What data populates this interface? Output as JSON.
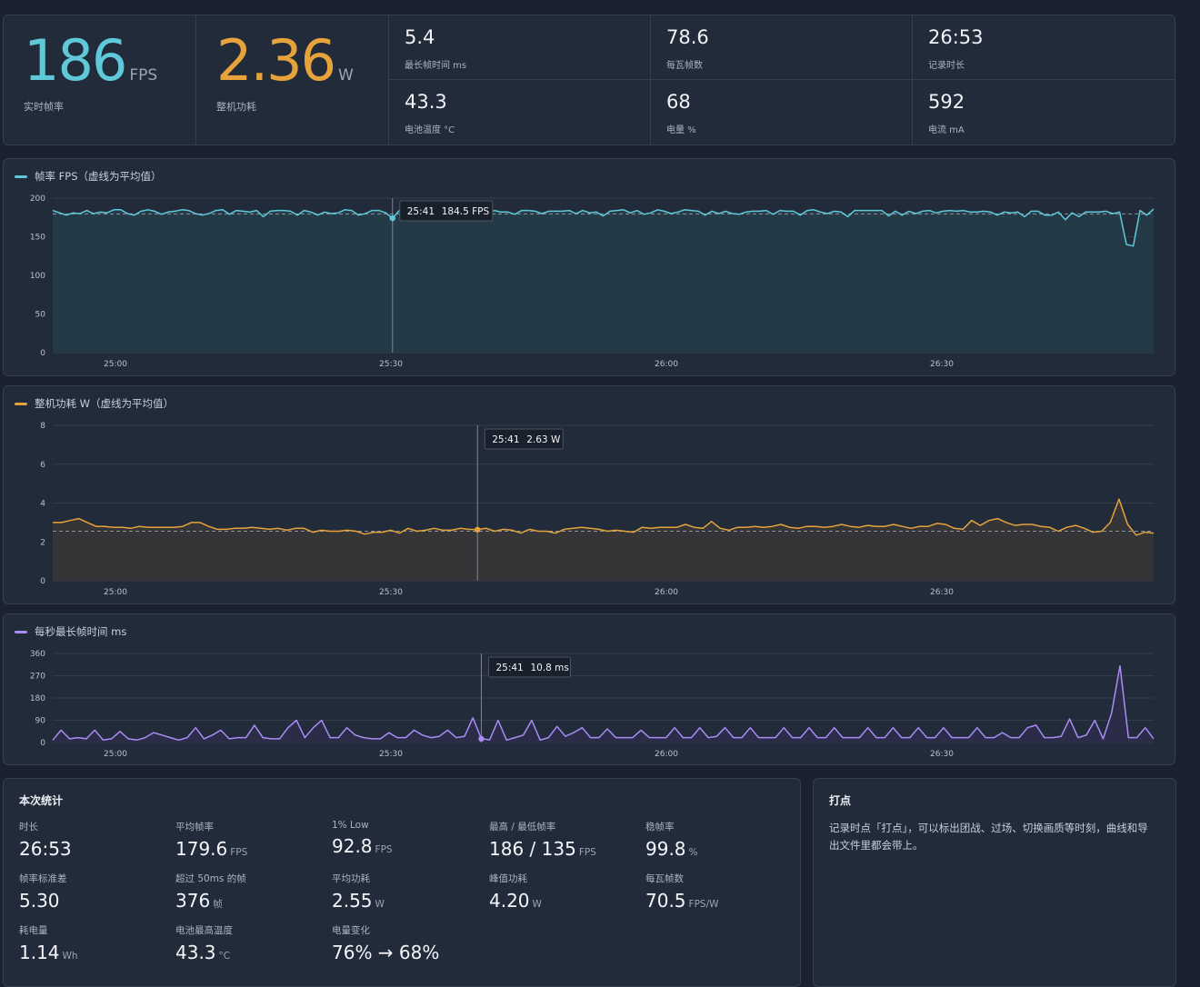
{
  "header": {
    "fps": {
      "value": "186",
      "unit": "FPS",
      "label": "实时帧率"
    },
    "power": {
      "value": "2.36",
      "unit": "W",
      "label": "整机功耗"
    },
    "cells": [
      {
        "value": "5.4",
        "label": "最长帧时间 ms"
      },
      {
        "value": "78.6",
        "label": "每瓦帧数"
      },
      {
        "value": "26:53",
        "label": "记录时长"
      },
      {
        "value": "43.3",
        "label": "电池温度 °C"
      },
      {
        "value": "68",
        "label": "电量 %"
      },
      {
        "value": "592",
        "label": "电流 mA"
      }
    ]
  },
  "colors": {
    "fps": "#5fc9da",
    "power": "#e6a33b",
    "frametime": "#a98cf5"
  },
  "charts": {
    "fps": {
      "title": "帧率 FPS（虚线为平均值）",
      "tooltip_time": "25:41",
      "tooltip_value": "184.5 FPS"
    },
    "power": {
      "title": "整机功耗 W（虚线为平均值）",
      "tooltip_time": "25:41",
      "tooltip_value": "2.63 W"
    },
    "frametime": {
      "title": "每秒最长帧时间 ms",
      "tooltip_time": "25:41",
      "tooltip_value": "10.8 ms"
    }
  },
  "chart_data": [
    {
      "type": "line",
      "title": "帧率 FPS（虚线为平均值）",
      "x_ticks": [
        "25:00",
        "25:30",
        "26:00",
        "26:30"
      ],
      "x_range_seconds": [
        1493,
        1613
      ],
      "ylim": [
        0,
        200
      ],
      "y_ticks": [
        "0",
        "50",
        "100",
        "150",
        "200"
      ],
      "average": 179.6,
      "grid": true,
      "series": [
        {
          "values": [
            184,
            181,
            178,
            181,
            180,
            184,
            180,
            182,
            181,
            185,
            185,
            180,
            178,
            183,
            185,
            183,
            179,
            182,
            183,
            185,
            184,
            180,
            178,
            180,
            184,
            185,
            179,
            184,
            183,
            182,
            184,
            176,
            183,
            184,
            184,
            183,
            178,
            184,
            182,
            178,
            182,
            180,
            181,
            185,
            184,
            178,
            180,
            184,
            184,
            181,
            174,
            184,
            182,
            180,
            183,
            184,
            177,
            184,
            183,
            183,
            181,
            176,
            182,
            185,
            180,
            184,
            182,
            182,
            179,
            184,
            184,
            183,
            180,
            183,
            183,
            183,
            184,
            180,
            184,
            181,
            182,
            177,
            183,
            184,
            185,
            181,
            184,
            179,
            181,
            185,
            183,
            180,
            182,
            185,
            184,
            183,
            178,
            183,
            180,
            183,
            180,
            179,
            182,
            183,
            183,
            184,
            179,
            184,
            183,
            183,
            178,
            184,
            185,
            182,
            180,
            183,
            182,
            176,
            184,
            184,
            184,
            184,
            184,
            177,
            183,
            178,
            183,
            180,
            183,
            184,
            181,
            183,
            184,
            183,
            184,
            182,
            182,
            183,
            182,
            178,
            182,
            181,
            182,
            176,
            183,
            183,
            178,
            178,
            182,
            172,
            181,
            176,
            182,
            182,
            182,
            183,
            180,
            182,
            140,
            138,
            184,
            178,
            186
          ]
        }
      ]
    },
    {
      "type": "line",
      "title": "整机功耗 W（虚线为平均值）",
      "x_ticks": [
        "25:00",
        "25:30",
        "26:00",
        "26:30"
      ],
      "ylim": [
        0,
        8
      ],
      "y_ticks": [
        "0",
        "2",
        "4",
        "6",
        "8"
      ],
      "average": 2.55,
      "grid": true,
      "series": [
        {
          "values": [
            3.0,
            3.0,
            3.1,
            3.2,
            3.0,
            2.8,
            2.8,
            2.75,
            2.75,
            2.7,
            2.8,
            2.75,
            2.75,
            2.75,
            2.75,
            2.8,
            3.0,
            3.0,
            2.8,
            2.65,
            2.65,
            2.7,
            2.7,
            2.75,
            2.7,
            2.65,
            2.7,
            2.6,
            2.7,
            2.7,
            2.5,
            2.6,
            2.55,
            2.55,
            2.6,
            2.55,
            2.4,
            2.5,
            2.5,
            2.6,
            2.45,
            2.7,
            2.55,
            2.6,
            2.7,
            2.6,
            2.6,
            2.7,
            2.65,
            2.63,
            2.7,
            2.55,
            2.65,
            2.6,
            2.45,
            2.65,
            2.55,
            2.55,
            2.45,
            2.65,
            2.7,
            2.75,
            2.7,
            2.65,
            2.55,
            2.6,
            2.55,
            2.5,
            2.75,
            2.7,
            2.75,
            2.75,
            2.75,
            2.9,
            2.75,
            2.7,
            3.05,
            2.7,
            2.6,
            2.75,
            2.75,
            2.8,
            2.75,
            2.8,
            2.9,
            2.75,
            2.7,
            2.8,
            2.8,
            2.75,
            2.8,
            2.9,
            2.8,
            2.75,
            2.85,
            2.8,
            2.8,
            2.9,
            2.8,
            2.7,
            2.8,
            2.8,
            2.95,
            2.9,
            2.7,
            2.65,
            3.1,
            2.85,
            3.1,
            3.2,
            3.0,
            2.85,
            2.9,
            2.9,
            2.8,
            2.75,
            2.55,
            2.75,
            2.85,
            2.7,
            2.5,
            2.55,
            3.0,
            4.2,
            2.9,
            2.35,
            2.5,
            2.45
          ]
        }
      ]
    },
    {
      "type": "line",
      "title": "每秒最长帧时间 ms",
      "x_ticks": [
        "25:00",
        "25:30",
        "26:00",
        "26:30"
      ],
      "ylim": [
        0,
        360
      ],
      "y_ticks": [
        "0",
        "90",
        "180",
        "270",
        "360"
      ],
      "grid": true,
      "series": [
        {
          "values": [
            10,
            50,
            15,
            20,
            15,
            50,
            10,
            15,
            45,
            15,
            10,
            20,
            40,
            30,
            20,
            10,
            20,
            60,
            15,
            30,
            50,
            15,
            20,
            20,
            70,
            20,
            15,
            15,
            60,
            90,
            20,
            60,
            90,
            20,
            20,
            60,
            30,
            20,
            15,
            15,
            40,
            20,
            20,
            50,
            30,
            20,
            25,
            50,
            20,
            25,
            100,
            15,
            11,
            90,
            10,
            20,
            30,
            90,
            10,
            20,
            65,
            25,
            40,
            60,
            20,
            20,
            55,
            20,
            20,
            20,
            50,
            20,
            20,
            20,
            60,
            20,
            20,
            60,
            20,
            25,
            60,
            20,
            20,
            60,
            20,
            20,
            20,
            60,
            20,
            20,
            60,
            20,
            20,
            60,
            20,
            20,
            20,
            60,
            20,
            20,
            60,
            20,
            20,
            60,
            20,
            20,
            60,
            20,
            20,
            20,
            60,
            20,
            20,
            40,
            20,
            20,
            60,
            70,
            20,
            20,
            25,
            95,
            20,
            30,
            90,
            15,
            120,
            310,
            20,
            20,
            60,
            15
          ]
        }
      ]
    }
  ],
  "summary": {
    "title": "本次统计",
    "items": [
      {
        "label": "时长",
        "value": "26:53",
        "unit": ""
      },
      {
        "label": "平均帧率",
        "value": "179.6",
        "unit": "FPS"
      },
      {
        "label": "1% Low",
        "value": "92.8",
        "unit": "FPS"
      },
      {
        "label": "最高 / 最低帧率",
        "value": "186 / 135",
        "unit": "FPS"
      },
      {
        "label": "稳帧率",
        "value": "99.8",
        "unit": "%"
      },
      {
        "label": "帧率标准差",
        "value": "5.30",
        "unit": ""
      },
      {
        "label": "超过 50ms 的帧",
        "value": "376",
        "unit": "帧"
      },
      {
        "label": "平均功耗",
        "value": "2.55",
        "unit": "W"
      },
      {
        "label": "峰值功耗",
        "value": "4.20",
        "unit": "W"
      },
      {
        "label": "每瓦帧数",
        "value": "70.5",
        "unit": "FPS/W"
      },
      {
        "label": "耗电量",
        "value": "1.14",
        "unit": "Wh"
      },
      {
        "label": "电池最高温度",
        "value": "43.3",
        "unit": "°C"
      },
      {
        "label": "电量变化",
        "value": "76% → 68%",
        "unit": ""
      }
    ]
  },
  "markers": {
    "title": "打点",
    "description": "记录时点「打点」，可以标出团战、过场、切换画质等时刻，曲线和导出文件里都会带上。"
  }
}
